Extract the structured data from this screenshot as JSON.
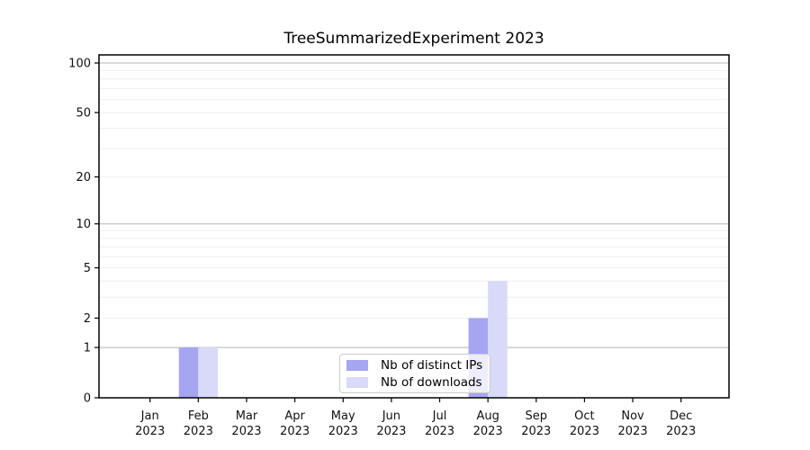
{
  "chart_data": {
    "type": "bar",
    "title": "TreeSummarizedExperiment 2023",
    "scale": "log1p",
    "grid": true,
    "xlabel": "",
    "ylabel": "",
    "year": "2023",
    "categories": [
      "Jan",
      "Feb",
      "Mar",
      "Apr",
      "May",
      "Jun",
      "Jul",
      "Aug",
      "Sep",
      "Oct",
      "Nov",
      "Dec"
    ],
    "series": [
      {
        "name": "Nb of distinct IPs",
        "color": "#a5a5f2",
        "values": [
          0,
          1,
          0,
          0,
          0,
          0,
          0,
          2,
          0,
          0,
          0,
          0
        ]
      },
      {
        "name": "Nb of downloads",
        "color": "#d9d9fa",
        "values": [
          0,
          1,
          0,
          0,
          0,
          0,
          0,
          4,
          0,
          0,
          0,
          0
        ]
      }
    ],
    "yticks": [
      0,
      1,
      2,
      5,
      10,
      20,
      50,
      100
    ],
    "ylim": [
      0,
      115
    ],
    "grid_major_values": [
      1,
      10,
      100
    ],
    "grid_minor_values": [
      2,
      3,
      4,
      5,
      6,
      7,
      8,
      9,
      20,
      30,
      40,
      50,
      60,
      70,
      80,
      90
    ],
    "legend_position": "lower-center-inside"
  },
  "colors": {
    "spine": "#000000",
    "tick_label": "#111111",
    "grid_major": "#c3c3c3",
    "grid_minor": "#efefef",
    "legend_border": "#cccccc"
  }
}
